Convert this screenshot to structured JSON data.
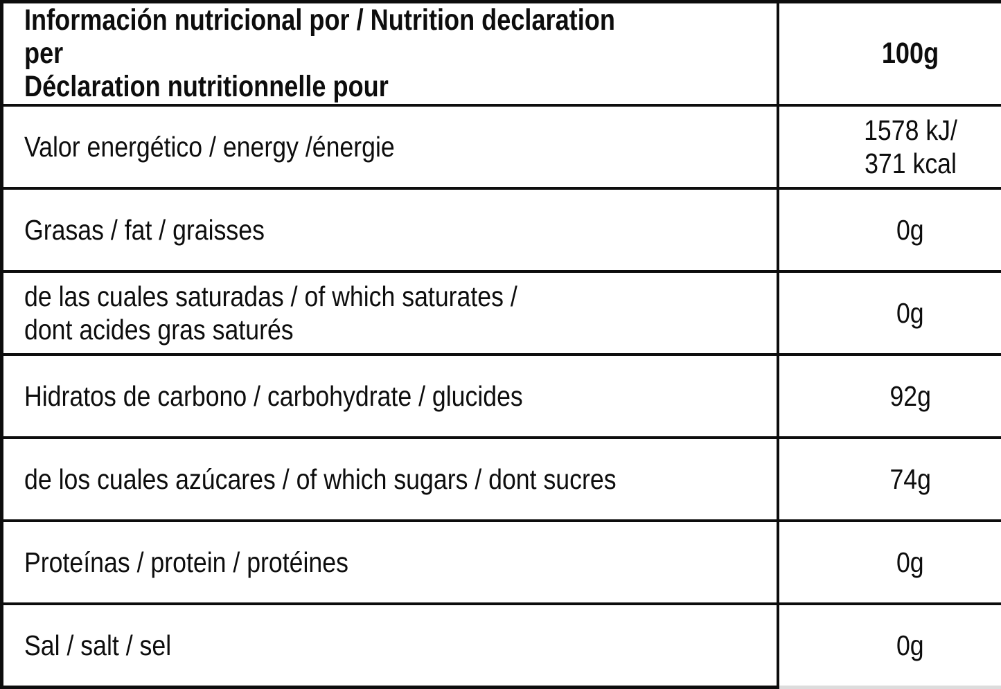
{
  "table": {
    "header": {
      "label": "Información nutricional por / Nutrition declaration per\nDéclaration nutritionnelle pour",
      "amount": "100g"
    },
    "rows": [
      {
        "id": "energy",
        "label": "Valor energético / energy /énergie",
        "value": "1578 kJ/\n371 kcal"
      },
      {
        "id": "fat",
        "label": "Grasas / fat / graisses",
        "value": "0g"
      },
      {
        "id": "saturates",
        "label": "de las cuales saturadas / of which saturates /\ndont acides gras saturés",
        "value": "0g"
      },
      {
        "id": "carbohydrate",
        "label": "Hidratos de carbono / carbohydrate / glucides",
        "value": "92g"
      },
      {
        "id": "sugars",
        "label": "de los cuales azúcares / of which sugars / dont sucres",
        "value": "74g"
      },
      {
        "id": "protein",
        "label": "Proteínas / protein / protéines",
        "value": "0g"
      },
      {
        "id": "salt",
        "label": "Sal / salt / sel",
        "value": "0g"
      }
    ]
  },
  "colors": {
    "text": "#0d0d0d",
    "border": "#0d0d0d",
    "faint_bottom_border": "#dcdcdc",
    "background": "#ffffff"
  }
}
